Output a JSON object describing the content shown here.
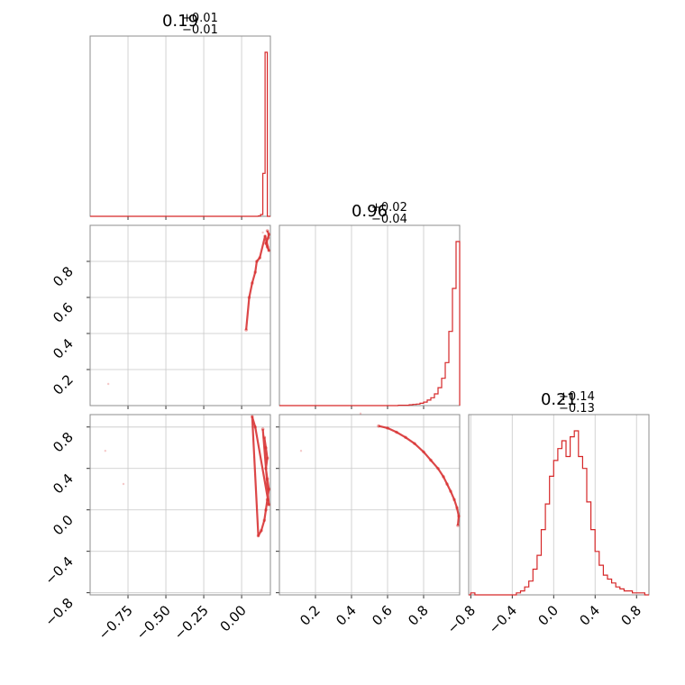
{
  "colors": {
    "series": "#d62728",
    "grid": "#c8c8c8",
    "frame": "#8c8c8c"
  },
  "chart_data": {
    "type": "corner",
    "parameters": [
      {
        "title": {
          "value": "0.19",
          "plus": "+0.01",
          "minus": "−0.01"
        },
        "range": [
          -1.0,
          0.19
        ],
        "ticks": [
          -0.75,
          -0.5,
          -0.25,
          0.0
        ],
        "tick_labels": [
          "−0.75",
          "−0.50",
          "−0.25",
          "0.00"
        ],
        "hist_edges": [
          0.11,
          0.125,
          0.14,
          0.155,
          0.17,
          0.19
        ],
        "hist_values": [
          2,
          10,
          240,
          915,
          0
        ]
      },
      {
        "title": {
          "value": "0.96",
          "plus": "+0.02",
          "minus": "−0.04"
        },
        "range": [
          0.0,
          1.0
        ],
        "ticks": [
          0.2,
          0.4,
          0.6,
          0.8
        ],
        "tick_labels": [
          "0.2",
          "0.4",
          "0.6",
          "0.8"
        ],
        "hist_edges": [
          0.66,
          0.68,
          0.7,
          0.72,
          0.74,
          0.76,
          0.78,
          0.8,
          0.82,
          0.84,
          0.86,
          0.88,
          0.9,
          0.92,
          0.94,
          0.96,
          0.98,
          1.0
        ],
        "hist_values": [
          1,
          1,
          1,
          2,
          3,
          4,
          6,
          9,
          14,
          20,
          30,
          46,
          70,
          110,
          190,
          300,
          420
        ]
      },
      {
        "title": {
          "value": "0.21",
          "plus": "+0.14",
          "minus": "−0.13"
        },
        "range": [
          -0.82,
          0.92
        ],
        "ticks": [
          -0.8,
          -0.4,
          0.0,
          0.4,
          0.8
        ],
        "tick_labels": [
          "−0.8",
          "−0.4",
          "0.0",
          "0.4",
          "0.8"
        ],
        "hist_edges": [
          -0.8,
          -0.76,
          -0.72,
          -0.68,
          -0.64,
          -0.6,
          -0.56,
          -0.52,
          -0.48,
          -0.44,
          -0.4,
          -0.36,
          -0.32,
          -0.28,
          -0.24,
          -0.2,
          -0.16,
          -0.12,
          -0.08,
          -0.04,
          0.0,
          0.04,
          0.08,
          0.12,
          0.16,
          0.2,
          0.24,
          0.28,
          0.32,
          0.36,
          0.4,
          0.44,
          0.48,
          0.52,
          0.56,
          0.6,
          0.64,
          0.68,
          0.72,
          0.76,
          0.8,
          0.84,
          0.88,
          0.92
        ],
        "hist_values": [
          1,
          0,
          0,
          0,
          0,
          0,
          0,
          0,
          0,
          0,
          0,
          1,
          2,
          4,
          7,
          13,
          20,
          33,
          46,
          60,
          68,
          74,
          78,
          70,
          80,
          83,
          70,
          64,
          47,
          33,
          22,
          15,
          10,
          8,
          6,
          4,
          3,
          2,
          2,
          1,
          1,
          1,
          0
        ]
      }
    ],
    "scatter_1_0": {
      "xy": [
        [
          0.17,
          0.97
        ],
        [
          0.18,
          0.95
        ],
        [
          0.175,
          0.93
        ],
        [
          0.16,
          0.9
        ],
        [
          0.17,
          0.88
        ],
        [
          0.18,
          0.86
        ],
        [
          0.165,
          0.91
        ],
        [
          0.155,
          0.94
        ],
        [
          0.12,
          0.82
        ],
        [
          0.1,
          0.8
        ],
        [
          0.09,
          0.74
        ],
        [
          0.07,
          0.68
        ],
        [
          0.05,
          0.6
        ],
        [
          0.03,
          0.42
        ],
        [
          0.14,
          0.96
        ],
        [
          -0.88,
          0.12
        ]
      ]
    },
    "scatter_2_0": {
      "xy": [
        [
          0.15,
          0.7
        ],
        [
          0.16,
          0.6
        ],
        [
          0.17,
          0.5
        ],
        [
          0.16,
          0.4
        ],
        [
          0.17,
          0.3
        ],
        [
          0.18,
          0.2
        ],
        [
          0.17,
          0.1
        ],
        [
          0.16,
          0.0
        ],
        [
          0.15,
          -0.1
        ],
        [
          0.13,
          -0.2
        ],
        [
          0.11,
          -0.25
        ],
        [
          0.07,
          0.9
        ],
        [
          0.09,
          0.8
        ],
        [
          0.18,
          0.05
        ],
        [
          0.14,
          0.78
        ],
        [
          -0.9,
          0.57
        ],
        [
          -0.78,
          0.25
        ]
      ]
    },
    "scatter_2_1": {
      "xy": [
        [
          0.55,
          0.81
        ],
        [
          0.6,
          0.79
        ],
        [
          0.65,
          0.75
        ],
        [
          0.7,
          0.7
        ],
        [
          0.75,
          0.64
        ],
        [
          0.8,
          0.56
        ],
        [
          0.84,
          0.48
        ],
        [
          0.88,
          0.4
        ],
        [
          0.91,
          0.32
        ],
        [
          0.93,
          0.25
        ],
        [
          0.95,
          0.18
        ],
        [
          0.97,
          0.1
        ],
        [
          0.985,
          0.02
        ],
        [
          0.995,
          -0.06
        ],
        [
          0.99,
          -0.15
        ],
        [
          0.45,
          0.93
        ],
        [
          0.12,
          0.57
        ]
      ]
    }
  }
}
